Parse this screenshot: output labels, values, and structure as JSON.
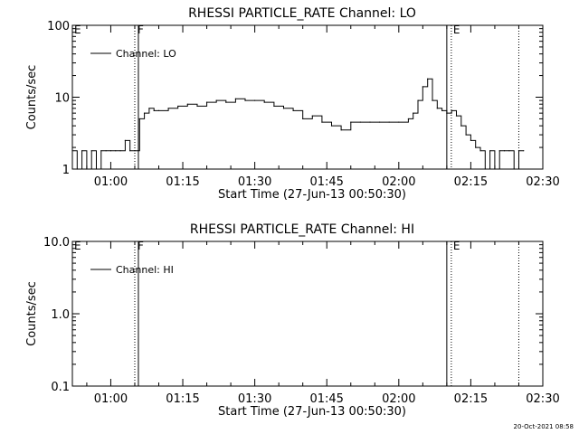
{
  "chart_data": [
    {
      "type": "line",
      "title": "RHESSI PARTICLE_RATE Channel: LO",
      "xlabel": "Start Time (27-Jun-13 00:50:30)",
      "ylabel": "Counts/sec",
      "y_scale": "log",
      "ylim": [
        1,
        100
      ],
      "y_ticks": [
        "1",
        "10",
        "100"
      ],
      "xlim": [
        "00:52",
        "02:30"
      ],
      "x_ticks": [
        "01:00",
        "01:15",
        "01:30",
        "01:45",
        "02:00",
        "02:15",
        "02:30"
      ],
      "legend": "top-left",
      "markers": [
        {
          "label": "E",
          "x": "00:52",
          "style": "none"
        },
        {
          "label": "F",
          "x": "01:05",
          "style": "dotted+solid"
        },
        {
          "label": "E",
          "x": "02:10",
          "style": "solid+dotted"
        },
        {
          "label": "",
          "x": "02:25",
          "style": "dotted"
        }
      ],
      "series": [
        {
          "name": "Channel: LO",
          "x": [
            "00:52",
            "00:53",
            "00:54",
            "00:55",
            "00:56",
            "00:57",
            "00:58",
            "00:59",
            "01:00",
            "01:01",
            "01:02",
            "01:03",
            "01:04",
            "01:05",
            "01:06",
            "01:07",
            "01:08",
            "01:09",
            "01:10",
            "01:12",
            "01:14",
            "01:16",
            "01:18",
            "01:20",
            "01:22",
            "01:24",
            "01:26",
            "01:28",
            "01:30",
            "01:32",
            "01:34",
            "01:36",
            "01:38",
            "01:40",
            "01:42",
            "01:44",
            "01:46",
            "01:48",
            "01:50",
            "01:52",
            "01:54",
            "01:56",
            "01:58",
            "02:00",
            "02:02",
            "02:03",
            "02:04",
            "02:05",
            "02:06",
            "02:07",
            "02:08",
            "02:09",
            "02:10",
            "02:11",
            "02:12",
            "02:13",
            "02:14",
            "02:15",
            "02:16",
            "02:17",
            "02:18",
            "02:19",
            "02:20",
            "02:21",
            "02:22",
            "02:23",
            "02:24",
            "02:25",
            "02:26"
          ],
          "y": [
            1.8,
            1.0,
            1.8,
            1.0,
            1.8,
            1.0,
            1.8,
            1.8,
            1.8,
            1.8,
            1.8,
            2.5,
            1.8,
            1.8,
            5,
            6,
            7,
            6.5,
            6.5,
            7,
            7.5,
            8,
            7.5,
            8.5,
            9,
            8.5,
            9.5,
            9,
            9,
            8.5,
            7.5,
            7,
            6.5,
            5,
            5.5,
            4.5,
            4,
            3.5,
            4.5,
            4.5,
            4.5,
            4.5,
            4.5,
            4.5,
            5,
            6,
            9,
            14,
            18,
            9,
            7,
            6.5,
            6,
            6.5,
            5.5,
            4,
            3,
            2.5,
            2,
            1.8,
            1.0,
            1.8,
            1.0,
            1.8,
            1.8,
            1.8,
            1.0,
            1.8,
            1.8
          ]
        }
      ]
    },
    {
      "type": "line",
      "title": "RHESSI PARTICLE_RATE Channel: HI",
      "xlabel": "Start Time (27-Jun-13 00:50:30)",
      "ylabel": "Counts/sec",
      "y_scale": "log",
      "ylim": [
        0.1,
        10
      ],
      "y_ticks": [
        "0.1",
        "1.0",
        "10.0"
      ],
      "xlim": [
        "00:52",
        "02:30"
      ],
      "x_ticks": [
        "01:00",
        "01:15",
        "01:30",
        "01:45",
        "02:00",
        "02:15",
        "02:30"
      ],
      "legend": "top-left",
      "markers": [
        {
          "label": "E",
          "x": "00:52",
          "style": "none"
        },
        {
          "label": "F",
          "x": "01:05",
          "style": "dotted+solid"
        },
        {
          "label": "E",
          "x": "02:10",
          "style": "solid+dotted"
        },
        {
          "label": "",
          "x": "02:25",
          "style": "dotted"
        }
      ],
      "series": [
        {
          "name": "Channel: HI",
          "x": [],
          "y": []
        }
      ]
    }
  ],
  "footer": {
    "date_stamp": "20-Oct-2021 08:58"
  }
}
